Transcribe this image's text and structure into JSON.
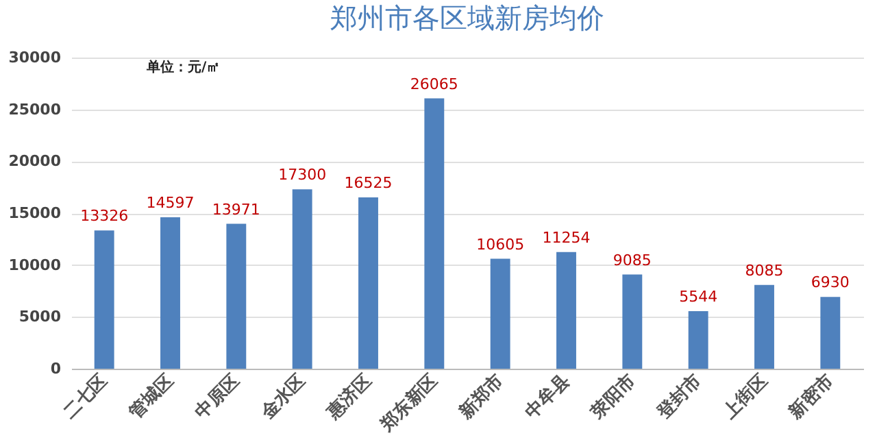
{
  "chart_data": {
    "type": "bar",
    "title": "郑州市各区域新房均价",
    "annotations": [
      "单位：元/㎡"
    ],
    "categories": [
      "二七区",
      "管城区",
      "中原区",
      "金水区",
      "惠济区",
      "郑东新区",
      "新郑市",
      "中牟县",
      "荥阳市",
      "登封市",
      "上街区",
      "新密市"
    ],
    "values": [
      13326,
      14597,
      13971,
      17300,
      16525,
      26065,
      10605,
      11254,
      9085,
      5544,
      8085,
      6930
    ],
    "color": "#4f81bd",
    "ylim": [
      0,
      30000
    ],
    "yticks": [
      0,
      5000,
      10000,
      15000,
      20000,
      25000,
      30000
    ],
    "grid": "y",
    "data_labels": true
  }
}
